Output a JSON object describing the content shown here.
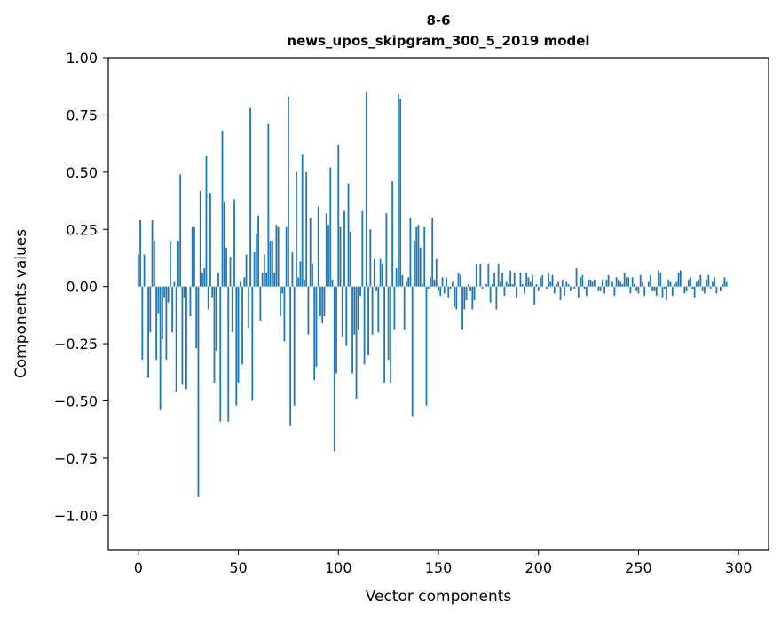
{
  "chart_data": {
    "type": "bar",
    "title": "8-6",
    "subtitle": "news_upos_skipgram_300_5_2019 model",
    "xlabel": "Vector components",
    "ylabel": "Components values",
    "xlim": [
      -15,
      315
    ],
    "ylim": [
      -1.15,
      1.0
    ],
    "xticks": [
      0,
      50,
      100,
      150,
      200,
      250,
      300
    ],
    "xtick_labels": [
      "0",
      "50",
      "100",
      "150",
      "200",
      "250",
      "300"
    ],
    "yticks": [
      1.0,
      0.75,
      0.5,
      0.25,
      0.0,
      -0.25,
      -0.5,
      -0.75,
      -1.0
    ],
    "ytick_labels": [
      "1.00",
      "0.75",
      "0.50",
      "0.25",
      "0.00",
      "−0.25",
      "−0.50",
      "−0.75",
      "−1.00"
    ],
    "bar_color": "#1f77b4",
    "grid": false,
    "values": [
      0.14,
      0.29,
      -0.32,
      0.14,
      0.0,
      -0.4,
      -0.2,
      0.29,
      0.2,
      -0.32,
      -0.12,
      -0.54,
      -0.23,
      -0.05,
      -0.32,
      -0.07,
      0.2,
      -0.2,
      0.02,
      -0.46,
      0.2,
      0.49,
      -0.43,
      -0.05,
      -0.45,
      0.0,
      -0.13,
      0.26,
      0.26,
      -0.27,
      -0.92,
      0.42,
      0.06,
      0.08,
      0.57,
      -0.1,
      0.41,
      -0.05,
      -0.42,
      -0.28,
      0.06,
      -0.59,
      0.68,
      0.37,
      0.17,
      -0.59,
      0.13,
      -0.2,
      0.38,
      -0.52,
      -0.42,
      0.02,
      -0.34,
      0.04,
      0.14,
      -0.18,
      0.78,
      -0.5,
      0.15,
      0.23,
      0.31,
      -0.15,
      0.06,
      0.14,
      0.06,
      0.71,
      0.2,
      0.2,
      0.06,
      0.27,
      0.26,
      -0.13,
      -0.03,
      -0.24,
      0.26,
      0.83,
      -0.61,
      0.15,
      -0.52,
      0.5,
      0.04,
      0.11,
      0.58,
      0.03,
      0.5,
      -0.21,
      0.3,
      0.1,
      -0.41,
      -0.35,
      0.35,
      -0.13,
      -0.16,
      -0.13,
      0.32,
      0.27,
      0.52,
      0.03,
      -0.72,
      -0.38,
      0.62,
      0.26,
      -0.22,
      0.33,
      -0.26,
      0.45,
      0.24,
      -0.38,
      -0.21,
      -0.49,
      -0.19,
      -0.04,
      0.33,
      -0.34,
      0.85,
      -0.3,
      0.25,
      -0.21,
      0.12,
      -0.02,
      -0.2,
      0.12,
      0.1,
      -0.42,
      0.32,
      -0.32,
      -0.42,
      0.46,
      -0.19,
      0.08,
      0.84,
      0.82,
      0.05,
      -0.19,
      0.02,
      0.04,
      0.3,
      -0.57,
      0.2,
      0.26,
      0.27,
      0.17,
      0.01,
      0.26,
      -0.52,
      -0.01,
      0.04,
      0.3,
      0.03,
      0.12,
      -0.02,
      -0.04,
      0.04,
      -0.03,
      0.04,
      -0.05,
      -0.01,
      0.02,
      -0.09,
      -0.1,
      0.06,
      0.05,
      -0.19,
      -0.1,
      -0.06,
      0.01,
      -0.02,
      -0.1,
      -0.06,
      0.1,
      0.0,
      0.1,
      -0.01,
      0.0,
      0.01,
      0.1,
      -0.07,
      0.01,
      0.06,
      -0.1,
      0.1,
      0.02,
      0.06,
      -0.04,
      0.02,
      0.01,
      0.07,
      0.01,
      0.06,
      -0.05,
      0.0,
      0.06,
      0.01,
      -0.03,
      0.06,
      0.04,
      0.02,
      0.05,
      -0.08,
      0.01,
      -0.02,
      0.04,
      0.05,
      0.0,
      -0.01,
      0.06,
      0.02,
      0.05,
      -0.03,
      0.01,
      0.02,
      -0.06,
      0.03,
      -0.04,
      0.02,
      0.01,
      -0.02,
      0.0,
      -0.01,
      0.08,
      -0.05,
      0.04,
      0.05,
      -0.01,
      -0.04,
      0.03,
      0.03,
      0.02,
      0.03,
      0.0,
      -0.02,
      -0.02,
      0.03,
      -0.03,
      0.03,
      0.05,
      0.0,
      0.02,
      -0.04,
      0.04,
      0.03,
      0.02,
      0.01,
      0.06,
      0.04,
      0.04,
      -0.03,
      0.04,
      0.01,
      -0.02,
      -0.03,
      0.05,
      0.02,
      -0.04,
      0.0,
      0.02,
      0.05,
      -0.02,
      -0.02,
      -0.04,
      0.07,
      0.06,
      -0.05,
      -0.01,
      -0.06,
      0.03,
      0.02,
      -0.04,
      0.01,
      0.02,
      0.06,
      0.07,
      0.0,
      -0.03,
      -0.02,
      0.03,
      0.04,
      -0.01,
      -0.05,
      0.02,
      0.03,
      0.05,
      -0.02,
      -0.03,
      0.03,
      0.05,
      -0.01,
      0.02,
      0.04,
      -0.03,
      0.0,
      -0.02,
      0.01,
      0.04,
      0.02
    ]
  }
}
